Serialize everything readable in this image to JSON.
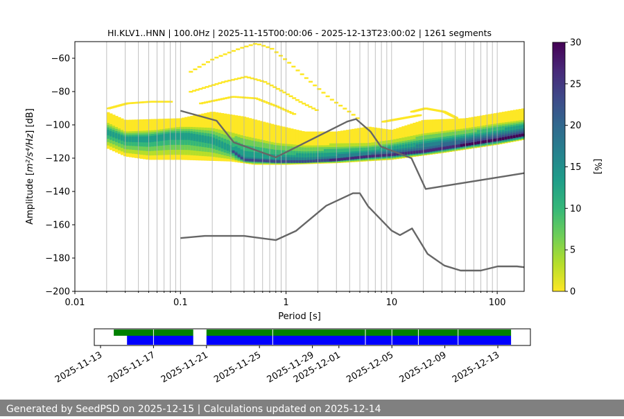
{
  "chart_data": {
    "type": "heatmap",
    "title": "HI.KLV1..HNN | 100.0Hz | 2025-11-15T00:00:06 - 2025-12-13T23:00:02 | 1261 segments",
    "xlabel": "Period [s]",
    "ylabel_prefix": "Amplitude [",
    "ylabel_math": "m²/s⁴/Hz",
    "ylabel_suffix": "] [dB]",
    "x_scale": "log",
    "xlim": [
      0.01,
      180
    ],
    "ylim": [
      -200,
      -50
    ],
    "x_ticks": [
      {
        "value": 0.01,
        "label": "0.01"
      },
      {
        "value": 0.1,
        "label": "0.1"
      },
      {
        "value": 1,
        "label": "1"
      },
      {
        "value": 10,
        "label": "10"
      },
      {
        "value": 100,
        "label": "100"
      }
    ],
    "y_ticks": [
      {
        "value": -60,
        "label": "−60"
      },
      {
        "value": -80,
        "label": "−80"
      },
      {
        "value": -100,
        "label": "−100"
      },
      {
        "value": -120,
        "label": "−120"
      },
      {
        "value": -140,
        "label": "−140"
      },
      {
        "value": -160,
        "label": "−160"
      },
      {
        "value": -180,
        "label": "−180"
      },
      {
        "value": -200,
        "label": "−200"
      }
    ],
    "vertical_grid_periods": [
      0.02,
      0.03,
      0.04,
      0.05,
      0.06,
      0.07,
      0.08,
      0.09,
      0.1,
      0.2,
      0.3,
      0.4,
      0.5,
      0.6,
      0.7,
      0.8,
      0.9,
      1,
      2,
      3,
      4,
      5,
      6,
      7,
      8,
      9,
      10,
      20,
      30,
      40,
      50,
      60,
      70,
      80,
      90,
      100
    ],
    "colorbar": {
      "label": "[%]",
      "min": 0,
      "max": 30,
      "ticks": [
        {
          "value": 0,
          "label": "0"
        },
        {
          "value": 5,
          "label": "5"
        },
        {
          "value": 10,
          "label": "10"
        },
        {
          "value": 15,
          "label": "15"
        },
        {
          "value": 20,
          "label": "20"
        },
        {
          "value": 25,
          "label": "25"
        },
        {
          "value": 30,
          "label": "30"
        }
      ],
      "colors": [
        "#fde725",
        "#b5de2b",
        "#6ece58",
        "#35b779",
        "#1f9e89",
        "#26828e",
        "#31688e",
        "#3e4989",
        "#482878",
        "#440154"
      ]
    },
    "noise_model_high": {
      "color": "#666666",
      "points": [
        [
          0.1,
          -91.5
        ],
        [
          0.22,
          -97.5
        ],
        [
          0.32,
          -110.5
        ],
        [
          0.8,
          -119.5
        ],
        [
          3.8,
          -98
        ],
        [
          4.6,
          -96.5
        ],
        [
          6.3,
          -104
        ],
        [
          7.9,
          -113
        ],
        [
          15.4,
          -120
        ],
        [
          21,
          -138.5
        ],
        [
          180,
          -129
        ]
      ]
    },
    "noise_model_low": {
      "color": "#666666",
      "points": [
        [
          0.1,
          -168
        ],
        [
          0.17,
          -166.7
        ],
        [
          0.4,
          -166.7
        ],
        [
          0.8,
          -169.2
        ],
        [
          1.24,
          -163.7
        ],
        [
          2.4,
          -148.6
        ],
        [
          4.3,
          -141.1
        ],
        [
          5.0,
          -141.1
        ],
        [
          6.0,
          -149
        ],
        [
          10,
          -163.5
        ],
        [
          12,
          -166.2
        ],
        [
          15.6,
          -162.2
        ],
        [
          21.9,
          -177.5
        ],
        [
          31.6,
          -184.5
        ],
        [
          45,
          -187.5
        ],
        [
          70,
          -187.5
        ],
        [
          101,
          -185
        ],
        [
          154,
          -185
        ],
        [
          180,
          -185.5
        ]
      ]
    },
    "pdf_distribution": {
      "band_center": [
        [
          0.02,
          -104
        ],
        [
          0.03,
          -108
        ],
        [
          0.05,
          -108
        ],
        [
          0.08,
          -106
        ],
        [
          0.12,
          -106
        ],
        [
          0.2,
          -109
        ],
        [
          0.3,
          -115
        ],
        [
          0.4,
          -121
        ],
        [
          0.8,
          -122
        ],
        [
          1.5,
          -122
        ],
        [
          3,
          -121
        ],
        [
          6,
          -119
        ],
        [
          10,
          -118
        ],
        [
          20,
          -116
        ],
        [
          50,
          -112
        ],
        [
          100,
          -109
        ],
        [
          180,
          -106
        ]
      ],
      "band_top": [
        [
          0.02,
          -97
        ],
        [
          0.03,
          -103
        ],
        [
          0.06,
          -102
        ],
        [
          0.1,
          -100
        ],
        [
          0.2,
          -100
        ],
        [
          0.4,
          -103
        ],
        [
          0.8,
          -108
        ],
        [
          1.5,
          -110
        ],
        [
          3,
          -110
        ],
        [
          6,
          -110
        ],
        [
          10,
          -108
        ],
        [
          20,
          -104
        ],
        [
          50,
          -101
        ],
        [
          100,
          -98
        ],
        [
          180,
          -96
        ]
      ],
      "band_bottom": [
        [
          0.02,
          -114
        ],
        [
          0.03,
          -119
        ],
        [
          0.05,
          -121
        ],
        [
          0.1,
          -121
        ],
        [
          0.3,
          -122
        ],
        [
          0.5,
          -124
        ],
        [
          1,
          -124
        ],
        [
          3,
          -123
        ],
        [
          10,
          -121
        ],
        [
          30,
          -117
        ],
        [
          100,
          -112
        ],
        [
          180,
          -109
        ]
      ],
      "outer_top": [
        [
          0.02,
          -92
        ],
        [
          0.03,
          -97
        ],
        [
          0.1,
          -96
        ],
        [
          0.2,
          -92
        ],
        [
          0.4,
          -95
        ],
        [
          0.8,
          -100
        ],
        [
          1.5,
          -104
        ],
        [
          3,
          -104
        ],
        [
          6,
          -101
        ],
        [
          10,
          -103
        ],
        [
          20,
          -97
        ],
        [
          50,
          -96
        ],
        [
          180,
          -90
        ]
      ],
      "outliers": [
        [
          [
            0.12,
            -68
          ],
          [
            0.2,
            -60
          ],
          [
            0.35,
            -54
          ],
          [
            0.5,
            -51
          ],
          [
            0.7,
            -54
          ],
          [
            1.0,
            -62
          ],
          [
            1.5,
            -72
          ],
          [
            2.5,
            -84
          ],
          [
            4.0,
            -93
          ],
          [
            5.0,
            -98
          ]
        ],
        [
          [
            0.12,
            -80
          ],
          [
            0.25,
            -74
          ],
          [
            0.4,
            -71
          ],
          [
            0.6,
            -74
          ],
          [
            0.9,
            -80
          ],
          [
            1.3,
            -86
          ],
          [
            2.0,
            -92
          ]
        ],
        [
          [
            0.15,
            -87
          ],
          [
            0.3,
            -83
          ],
          [
            0.5,
            -84
          ],
          [
            0.8,
            -89
          ],
          [
            1.2,
            -94
          ]
        ],
        [
          [
            0.02,
            -90
          ],
          [
            0.03,
            -87
          ],
          [
            0.05,
            -86
          ],
          [
            0.08,
            -86
          ]
        ],
        [
          [
            15,
            -92
          ],
          [
            20,
            -90
          ],
          [
            30,
            -92
          ],
          [
            40,
            -96
          ]
        ],
        [
          [
            8,
            -98
          ],
          [
            12,
            -96
          ],
          [
            18,
            -94
          ]
        ]
      ]
    }
  },
  "timeline": {
    "start_date": "2025-11-13",
    "end_date": "2025-12-15",
    "date_ticks": [
      "2025-11-13",
      "2025-11-17",
      "2025-11-21",
      "2025-11-25",
      "2025-11-29",
      "2025-12-01",
      "2025-12-05",
      "2025-12-09",
      "2025-12-13"
    ],
    "green_intervals": [
      [
        "2025-11-14",
        "2025-11-20"
      ],
      [
        "2025-11-21",
        "2025-12-14"
      ]
    ],
    "blue_intervals": [
      [
        "2025-11-15",
        "2025-11-20"
      ],
      [
        "2025-11-21",
        "2025-12-14"
      ]
    ],
    "gap_markers": [
      "2025-11-17",
      "2025-11-26",
      "2025-12-03",
      "2025-12-05",
      "2025-12-07",
      "2025-12-10"
    ],
    "green_color": "#008000",
    "blue_color": "#0000ff"
  },
  "footer": {
    "text": "Generated by SeedPSD on 2025-12-15 | Calculations updated on 2025-12-14"
  }
}
